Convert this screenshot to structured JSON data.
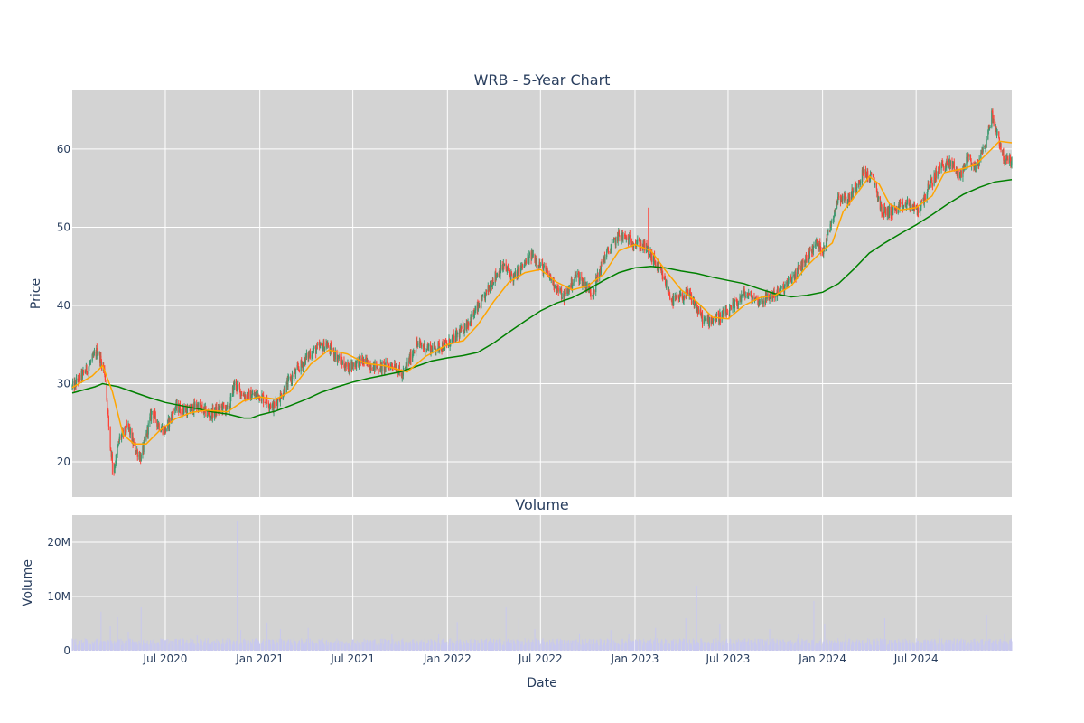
{
  "chart_data": [
    {
      "type": "candlestick",
      "title": "WRB - 5-Year Chart",
      "ylabel": "Price",
      "xlim": [
        "2020-01-02",
        "2025-01-03"
      ],
      "ylim": [
        15.5,
        67.5
      ],
      "yticks": [
        20,
        30,
        40,
        50,
        60
      ],
      "grid": true,
      "legend": "none",
      "colors": {
        "plot_bg": "#d3d3d3",
        "grid": "#ffffff",
        "up": "#3d9970",
        "down": "#ff4136",
        "ma_short": "#ffa500",
        "ma_long": "#008000"
      },
      "price_path": [
        [
          "2020-01-02",
          29.5
        ],
        [
          "2020-02-01",
          32.0
        ],
        [
          "2020-02-20",
          34.3
        ],
        [
          "2020-03-05",
          31.5
        ],
        [
          "2020-03-16",
          22.0
        ],
        [
          "2020-03-23",
          19.0
        ],
        [
          "2020-04-03",
          23.0
        ],
        [
          "2020-04-20",
          24.5
        ],
        [
          "2020-05-01",
          22.0
        ],
        [
          "2020-05-15",
          20.5
        ],
        [
          "2020-06-05",
          26.5
        ],
        [
          "2020-06-20",
          24.5
        ],
        [
          "2020-07-01",
          24.0
        ],
        [
          "2020-07-20",
          27.0
        ],
        [
          "2020-08-15",
          26.5
        ],
        [
          "2020-09-01",
          27.2
        ],
        [
          "2020-09-25",
          26.0
        ],
        [
          "2020-10-20",
          27.0
        ],
        [
          "2020-11-01",
          26.5
        ],
        [
          "2020-11-12",
          30.0
        ],
        [
          "2020-12-01",
          28.5
        ],
        [
          "2021-01-01",
          28.5
        ],
        [
          "2021-01-28",
          27.0
        ],
        [
          "2021-03-01",
          30.5
        ],
        [
          "2021-04-10",
          34.0
        ],
        [
          "2021-05-10",
          35.0
        ],
        [
          "2021-06-20",
          32.0
        ],
        [
          "2021-07-15",
          33.0
        ],
        [
          "2021-08-20",
          32.0
        ],
        [
          "2021-09-20",
          32.5
        ],
        [
          "2021-10-05",
          31.0
        ],
        [
          "2021-11-01",
          35.0
        ],
        [
          "2021-12-01",
          34.5
        ],
        [
          "2022-01-01",
          35.0
        ],
        [
          "2022-02-01",
          37.0
        ],
        [
          "2022-03-10",
          40.5
        ],
        [
          "2022-04-01",
          43.5
        ],
        [
          "2022-04-20",
          45.0
        ],
        [
          "2022-05-10",
          43.5
        ],
        [
          "2022-06-15",
          46.5
        ],
        [
          "2022-07-15",
          44.0
        ],
        [
          "2022-08-15",
          41.0
        ],
        [
          "2022-09-10",
          44.0
        ],
        [
          "2022-10-10",
          41.5
        ],
        [
          "2022-11-01",
          46.0
        ],
        [
          "2022-12-01",
          49.0
        ],
        [
          "2023-01-01",
          48.0
        ],
        [
          "2023-01-20",
          47.5
        ],
        [
          "2023-02-05",
          46.0
        ],
        [
          "2023-03-01",
          43.0
        ],
        [
          "2023-03-15",
          40.5
        ],
        [
          "2023-04-15",
          41.5
        ],
        [
          "2023-05-15",
          38.0
        ],
        [
          "2023-06-15",
          38.5
        ],
        [
          "2023-07-01",
          39.0
        ],
        [
          "2023-08-01",
          41.5
        ],
        [
          "2023-09-01",
          40.5
        ],
        [
          "2023-10-15",
          42.0
        ],
        [
          "2023-11-15",
          44.5
        ],
        [
          "2023-12-20",
          48.0
        ],
        [
          "2024-01-01",
          47.0
        ],
        [
          "2024-01-15",
          50.0
        ],
        [
          "2024-02-01",
          54.0
        ],
        [
          "2024-02-20",
          53.5
        ],
        [
          "2024-03-20",
          57.0
        ],
        [
          "2024-04-10",
          56.0
        ],
        [
          "2024-04-25",
          52.0
        ],
        [
          "2024-05-15",
          52.0
        ],
        [
          "2024-06-15",
          53.0
        ],
        [
          "2024-07-05",
          52.0
        ],
        [
          "2024-07-25",
          55.0
        ],
        [
          "2024-08-20",
          58.0
        ],
        [
          "2024-09-10",
          58.0
        ],
        [
          "2024-09-25",
          56.5
        ],
        [
          "2024-10-10",
          59.0
        ],
        [
          "2024-10-25",
          57.5
        ],
        [
          "2024-11-15",
          61.0
        ],
        [
          "2024-11-25",
          64.5
        ],
        [
          "2024-12-10",
          61.0
        ],
        [
          "2024-12-20",
          58.5
        ],
        [
          "2025-01-03",
          58.5
        ]
      ],
      "spikes": [
        {
          "x": "2020-03-20",
          "low": 18.3
        },
        {
          "x": "2023-01-27",
          "high": 52.5
        }
      ],
      "ma_short_path": [
        [
          "2020-01-02",
          29.5
        ],
        [
          "2020-02-10",
          31.0
        ],
        [
          "2020-03-01",
          32.3
        ],
        [
          "2020-03-20",
          29.0
        ],
        [
          "2020-04-10",
          23.5
        ],
        [
          "2020-05-01",
          22.3
        ],
        [
          "2020-05-25",
          22.3
        ],
        [
          "2020-06-20",
          24.0
        ],
        [
          "2020-07-20",
          25.5
        ],
        [
          "2020-08-20",
          26.3
        ],
        [
          "2020-09-20",
          26.6
        ],
        [
          "2020-10-30",
          26.4
        ],
        [
          "2020-11-30",
          27.8
        ],
        [
          "2021-01-01",
          28.3
        ],
        [
          "2021-02-01",
          28.0
        ],
        [
          "2021-03-01",
          29.0
        ],
        [
          "2021-04-10",
          32.5
        ],
        [
          "2021-05-15",
          34.3
        ],
        [
          "2021-06-20",
          33.8
        ],
        [
          "2021-07-25",
          32.6
        ],
        [
          "2021-09-01",
          32.3
        ],
        [
          "2021-10-15",
          31.5
        ],
        [
          "2021-11-20",
          33.5
        ],
        [
          "2022-01-01",
          35.0
        ],
        [
          "2022-02-01",
          35.5
        ],
        [
          "2022-03-01",
          37.5
        ],
        [
          "2022-04-01",
          40.5
        ],
        [
          "2022-05-01",
          43.0
        ],
        [
          "2022-06-01",
          44.2
        ],
        [
          "2022-07-01",
          44.6
        ],
        [
          "2022-08-01",
          43.0
        ],
        [
          "2022-09-01",
          42.0
        ],
        [
          "2022-10-01",
          42.5
        ],
        [
          "2022-11-01",
          44.0
        ],
        [
          "2022-12-01",
          47.0
        ],
        [
          "2023-01-01",
          47.8
        ],
        [
          "2023-02-01",
          47.0
        ],
        [
          "2023-03-01",
          44.5
        ],
        [
          "2023-04-01",
          42.0
        ],
        [
          "2023-05-01",
          40.5
        ],
        [
          "2023-06-01",
          38.5
        ],
        [
          "2023-07-01",
          38.3
        ],
        [
          "2023-08-01",
          40.0
        ],
        [
          "2023-09-01",
          41.0
        ],
        [
          "2023-10-01",
          41.3
        ],
        [
          "2023-11-01",
          42.5
        ],
        [
          "2023-12-01",
          45.0
        ],
        [
          "2024-01-01",
          47.0
        ],
        [
          "2024-01-20",
          48.0
        ],
        [
          "2024-02-10",
          52.0
        ],
        [
          "2024-03-10",
          54.5
        ],
        [
          "2024-04-01",
          56.5
        ],
        [
          "2024-04-20",
          55.5
        ],
        [
          "2024-05-10",
          53.0
        ],
        [
          "2024-06-01",
          52.2
        ],
        [
          "2024-07-01",
          52.5
        ],
        [
          "2024-08-01",
          54.0
        ],
        [
          "2024-08-25",
          57.0
        ],
        [
          "2024-10-01",
          57.5
        ],
        [
          "2024-10-25",
          58.0
        ],
        [
          "2024-11-25",
          60.0
        ],
        [
          "2024-12-10",
          61.0
        ],
        [
          "2025-01-03",
          60.8
        ]
      ],
      "ma_long_path": [
        [
          "2020-01-02",
          28.8
        ],
        [
          "2020-02-15",
          29.6
        ],
        [
          "2020-03-01",
          30.0
        ],
        [
          "2020-04-01",
          29.6
        ],
        [
          "2020-05-01",
          28.9
        ],
        [
          "2020-06-01",
          28.2
        ],
        [
          "2020-07-01",
          27.6
        ],
        [
          "2020-08-01",
          27.2
        ],
        [
          "2020-09-01",
          26.8
        ],
        [
          "2020-10-01",
          26.4
        ],
        [
          "2020-11-01",
          26.1
        ],
        [
          "2020-12-01",
          25.6
        ],
        [
          "2020-12-15",
          25.6
        ],
        [
          "2021-01-01",
          26.0
        ],
        [
          "2021-02-01",
          26.5
        ],
        [
          "2021-03-01",
          27.2
        ],
        [
          "2021-04-01",
          28.0
        ],
        [
          "2021-05-01",
          28.9
        ],
        [
          "2021-06-01",
          29.6
        ],
        [
          "2021-07-01",
          30.2
        ],
        [
          "2021-08-01",
          30.7
        ],
        [
          "2021-09-01",
          31.1
        ],
        [
          "2021-10-01",
          31.5
        ],
        [
          "2021-11-01",
          32.2
        ],
        [
          "2021-12-01",
          32.9
        ],
        [
          "2022-01-01",
          33.3
        ],
        [
          "2022-02-01",
          33.6
        ],
        [
          "2022-03-01",
          34.0
        ],
        [
          "2022-04-01",
          35.2
        ],
        [
          "2022-05-01",
          36.6
        ],
        [
          "2022-06-01",
          38.0
        ],
        [
          "2022-07-01",
          39.3
        ],
        [
          "2022-08-01",
          40.3
        ],
        [
          "2022-09-01",
          41.0
        ],
        [
          "2022-10-01",
          42.0
        ],
        [
          "2022-11-01",
          43.2
        ],
        [
          "2022-12-01",
          44.2
        ],
        [
          "2023-01-01",
          44.8
        ],
        [
          "2023-02-01",
          45.0
        ],
        [
          "2023-03-01",
          44.8
        ],
        [
          "2023-04-01",
          44.4
        ],
        [
          "2023-05-01",
          44.1
        ],
        [
          "2023-06-01",
          43.6
        ],
        [
          "2023-07-01",
          43.2
        ],
        [
          "2023-08-01",
          42.8
        ],
        [
          "2023-09-01",
          42.1
        ],
        [
          "2023-10-01",
          41.5
        ],
        [
          "2023-11-01",
          41.1
        ],
        [
          "2023-12-01",
          41.3
        ],
        [
          "2024-01-01",
          41.7
        ],
        [
          "2024-02-01",
          42.8
        ],
        [
          "2024-03-01",
          44.6
        ],
        [
          "2024-04-01",
          46.7
        ],
        [
          "2024-05-01",
          48.0
        ],
        [
          "2024-06-01",
          49.2
        ],
        [
          "2024-07-01",
          50.3
        ],
        [
          "2024-08-01",
          51.6
        ],
        [
          "2024-09-01",
          53.0
        ],
        [
          "2024-10-01",
          54.2
        ],
        [
          "2024-11-01",
          55.1
        ],
        [
          "2024-12-01",
          55.8
        ],
        [
          "2025-01-03",
          56.1
        ]
      ]
    },
    {
      "type": "bar",
      "title": "Volume",
      "xlabel": "Date",
      "ylabel": "Volume",
      "xlim": [
        "2020-01-02",
        "2025-01-03"
      ],
      "ylim": [
        0,
        25000000
      ],
      "yticks": [
        0,
        10000000,
        20000000
      ],
      "ytick_labels": [
        "0",
        "10M",
        "20M"
      ],
      "xticks": [
        "2020-07-01",
        "2021-01-01",
        "2021-07-01",
        "2022-01-01",
        "2022-07-01",
        "2023-01-01",
        "2023-07-01",
        "2024-01-01",
        "2024-07-01"
      ],
      "xtick_labels": [
        "Jul 2020",
        "Jan 2021",
        "Jul 2021",
        "Jan 2022",
        "Jul 2022",
        "Jan 2023",
        "Jul 2023",
        "Jan 2024",
        "Jul 2024"
      ],
      "grid": true,
      "colors": {
        "plot_bg": "#d3d3d3",
        "grid": "#ffffff",
        "bar": "#c8c8ee"
      },
      "baseline": 1700000,
      "spikes": [
        [
          "2020-01-15",
          2200000
        ],
        [
          "2020-02-27",
          7200000
        ],
        [
          "2020-03-16",
          4500000
        ],
        [
          "2020-03-30",
          6200000
        ],
        [
          "2020-04-20",
          3500000
        ],
        [
          "2020-05-15",
          8000000
        ],
        [
          "2020-06-20",
          3000000
        ],
        [
          "2020-09-01",
          2800000
        ],
        [
          "2020-11-18",
          24000000
        ],
        [
          "2020-11-25",
          3800000
        ],
        [
          "2021-01-15",
          5200000
        ],
        [
          "2021-02-10",
          4000000
        ],
        [
          "2021-04-05",
          4200000
        ],
        [
          "2021-09-15",
          3100000
        ],
        [
          "2021-12-15",
          3000000
        ],
        [
          "2022-01-20",
          5300000
        ],
        [
          "2022-04-25",
          8000000
        ],
        [
          "2022-05-20",
          6000000
        ],
        [
          "2022-06-20",
          4000000
        ],
        [
          "2022-09-15",
          3200000
        ],
        [
          "2022-11-15",
          3800000
        ],
        [
          "2022-12-20",
          3000000
        ],
        [
          "2023-02-10",
          4200000
        ],
        [
          "2023-04-10",
          6000000
        ],
        [
          "2023-05-01",
          12000000
        ],
        [
          "2023-06-15",
          5000000
        ],
        [
          "2023-09-20",
          4000000
        ],
        [
          "2023-11-15",
          3000000
        ],
        [
          "2023-12-15",
          9200000
        ],
        [
          "2024-01-05",
          5000000
        ],
        [
          "2024-02-15",
          3000000
        ],
        [
          "2024-05-01",
          6000000
        ],
        [
          "2024-08-15",
          4000000
        ],
        [
          "2024-10-20",
          5500000
        ],
        [
          "2024-11-15",
          6500000
        ],
        [
          "2024-12-20",
          3200000
        ]
      ]
    }
  ]
}
